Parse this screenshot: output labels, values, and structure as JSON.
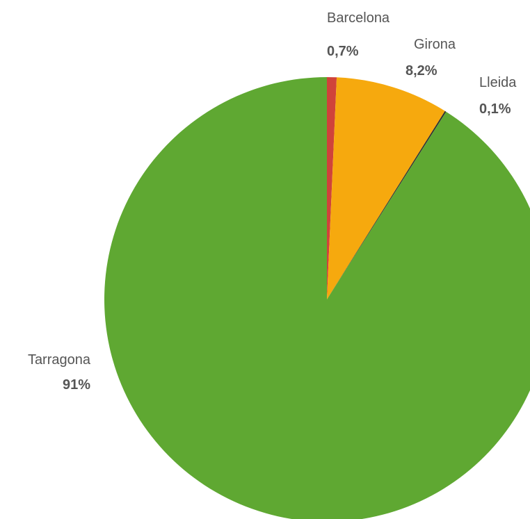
{
  "chart_data": {
    "type": "pie",
    "title": "",
    "start_angle": "12 o'clock",
    "direction": "clockwise",
    "slices": [
      {
        "label": "Barcelona",
        "value": 0.7,
        "value_label": "0,7%",
        "color": "#d0433a"
      },
      {
        "label": "Girona",
        "value": 8.2,
        "value_label": "8,2%",
        "color": "#f6a90e"
      },
      {
        "label": "Lleida",
        "value": 0.1,
        "value_label": "0,1%",
        "color": "#2f2f2f"
      },
      {
        "label": "Tarragona",
        "value": 91,
        "value_label": "91%",
        "color": "#5fa832"
      }
    ]
  }
}
